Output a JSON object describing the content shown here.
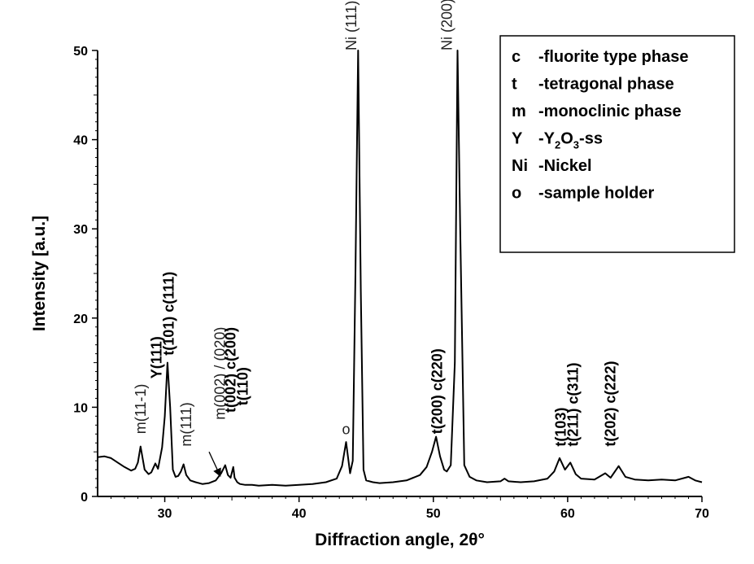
{
  "chart_data": {
    "type": "line",
    "title": "",
    "xlabel": "Diffraction angle, 2θ°",
    "ylabel": "Intensity [a.u.]",
    "xlim": [
      25,
      70
    ],
    "ylim": [
      0,
      50
    ],
    "x_ticks": [
      "30",
      "40",
      "50",
      "60",
      "70"
    ],
    "y_ticks": [
      "0",
      "10",
      "20",
      "30",
      "40",
      "50"
    ],
    "grid": false,
    "series": [
      {
        "x": [
          25.0,
          25.5,
          26.0,
          26.5,
          27.0,
          27.5,
          27.8,
          28.0,
          28.2,
          28.5,
          28.8,
          29.0,
          29.3,
          29.5,
          29.8,
          30.0,
          30.2,
          30.4,
          30.6,
          30.8,
          31.0,
          31.2,
          31.4,
          31.6,
          31.9,
          32.3,
          32.8,
          33.3,
          33.8,
          34.2,
          34.5,
          34.7,
          34.9,
          35.1,
          35.2,
          35.4,
          35.6,
          36.0,
          36.5,
          37.0,
          38.0,
          39.0,
          40.0,
          41.0,
          42.0,
          42.8,
          43.2,
          43.5,
          43.8,
          44.0,
          44.2,
          44.4,
          44.6,
          44.8,
          45.0,
          45.5,
          46.0,
          47.0,
          48.0,
          49.0,
          49.5,
          49.9,
          50.2,
          50.5,
          50.8,
          51.0,
          51.3,
          51.6,
          51.8,
          52.0,
          52.3,
          52.7,
          53.2,
          54.0,
          55.0,
          55.3,
          55.6,
          56.5,
          57.5,
          58.5,
          59.0,
          59.4,
          59.8,
          60.2,
          60.6,
          61.0,
          62.0,
          62.8,
          63.2,
          63.8,
          64.3,
          65.0,
          66.0,
          67.0,
          68.0,
          69.0,
          69.5,
          70.0
        ],
        "y": [
          4.4,
          4.5,
          4.3,
          3.8,
          3.3,
          2.9,
          3.1,
          3.8,
          5.6,
          3.0,
          2.5,
          2.7,
          3.7,
          3.1,
          5.5,
          9.0,
          15.0,
          10.0,
          3.0,
          2.2,
          2.3,
          2.8,
          3.6,
          2.4,
          1.8,
          1.6,
          1.4,
          1.5,
          1.8,
          2.6,
          3.5,
          2.4,
          2.1,
          3.3,
          2.1,
          1.6,
          1.4,
          1.3,
          1.3,
          1.2,
          1.3,
          1.2,
          1.3,
          1.4,
          1.6,
          2.0,
          3.4,
          6.1,
          2.6,
          4.0,
          25.0,
          50.0,
          23.0,
          3.0,
          1.8,
          1.6,
          1.5,
          1.6,
          1.8,
          2.4,
          3.3,
          5.0,
          6.7,
          4.5,
          3.0,
          2.8,
          3.5,
          15.0,
          50.0,
          30.0,
          3.5,
          2.2,
          1.8,
          1.6,
          1.7,
          2.0,
          1.7,
          1.6,
          1.7,
          2.0,
          2.8,
          4.3,
          3.0,
          3.8,
          2.5,
          2.0,
          1.9,
          2.6,
          2.1,
          3.4,
          2.2,
          1.9,
          1.8,
          1.9,
          1.8,
          2.2,
          1.8,
          1.6
        ]
      }
    ],
    "annotations": [
      {
        "id": "m11-1",
        "text": "m(11-1)",
        "x": 28.2,
        "y": 7.0,
        "bold": false,
        "rotated": true
      },
      {
        "id": "y111",
        "text": "Y(111)",
        "x": 29.4,
        "y": 13.2,
        "bold": true,
        "rotated": true
      },
      {
        "id": "t101c111",
        "text": "t(101) c(111)",
        "x": 30.3,
        "y": 15.8,
        "bold": true,
        "rotated": true
      },
      {
        "id": "m111",
        "text": "m(111)",
        "x": 31.6,
        "y": 5.6,
        "bold": false,
        "rotated": true
      },
      {
        "id": "m002020",
        "text": "m(002) / (020)",
        "x": 34.1,
        "y": 8.6,
        "bold": false,
        "rotated": true
      },
      {
        "id": "t002c200",
        "text": "t(002) c(200)",
        "x": 34.9,
        "y": 9.4,
        "bold": true,
        "rotated": true
      },
      {
        "id": "t110",
        "text": "t(110)",
        "x": 35.8,
        "y": 10.2,
        "bold": true,
        "rotated": true
      },
      {
        "id": "o",
        "text": "o",
        "x": 43.5,
        "y": 7.0,
        "bold": false,
        "rotated": false
      },
      {
        "id": "ni111",
        "text": "Ni (111)",
        "x": 43.9,
        "y": 50.0,
        "bold": false,
        "rotated": true
      },
      {
        "id": "ni200",
        "text": "Ni (200)",
        "x": 51.0,
        "y": 50.0,
        "bold": false,
        "rotated": true
      },
      {
        "id": "t200c220",
        "text": "t(200) c(220)",
        "x": 50.3,
        "y": 7.0,
        "bold": true,
        "rotated": true
      },
      {
        "id": "t103",
        "text": "t(103)",
        "x": 59.5,
        "y": 5.6,
        "bold": true,
        "rotated": true
      },
      {
        "id": "t211c311",
        "text": "t(211) c(311)",
        "x": 60.4,
        "y": 5.6,
        "bold": true,
        "rotated": true
      },
      {
        "id": "t202c222",
        "text": "t(202) c(222)",
        "x": 63.2,
        "y": 5.6,
        "bold": true,
        "rotated": true
      }
    ],
    "legend": {
      "placement": "top-right",
      "entries": [
        {
          "symbol": "c",
          "text": "-fluorite type phase"
        },
        {
          "symbol": "t",
          "text": "-tetragonal phase"
        },
        {
          "symbol": "m",
          "text": "-monoclinic phase"
        },
        {
          "symbol": "Y",
          "text": "-Y",
          "sub1": "2",
          "mid": "O",
          "sub2": "3",
          "tail": "-ss"
        },
        {
          "symbol": "Ni",
          "text": "-Nickel"
        },
        {
          "symbol": "o",
          "text": "-sample holder"
        }
      ]
    },
    "arrow": {
      "from": [
        33.3,
        5.0
      ],
      "to": [
        34.1,
        2.4
      ]
    },
    "colors": {
      "line": "#000000",
      "axis": "#000000"
    }
  }
}
